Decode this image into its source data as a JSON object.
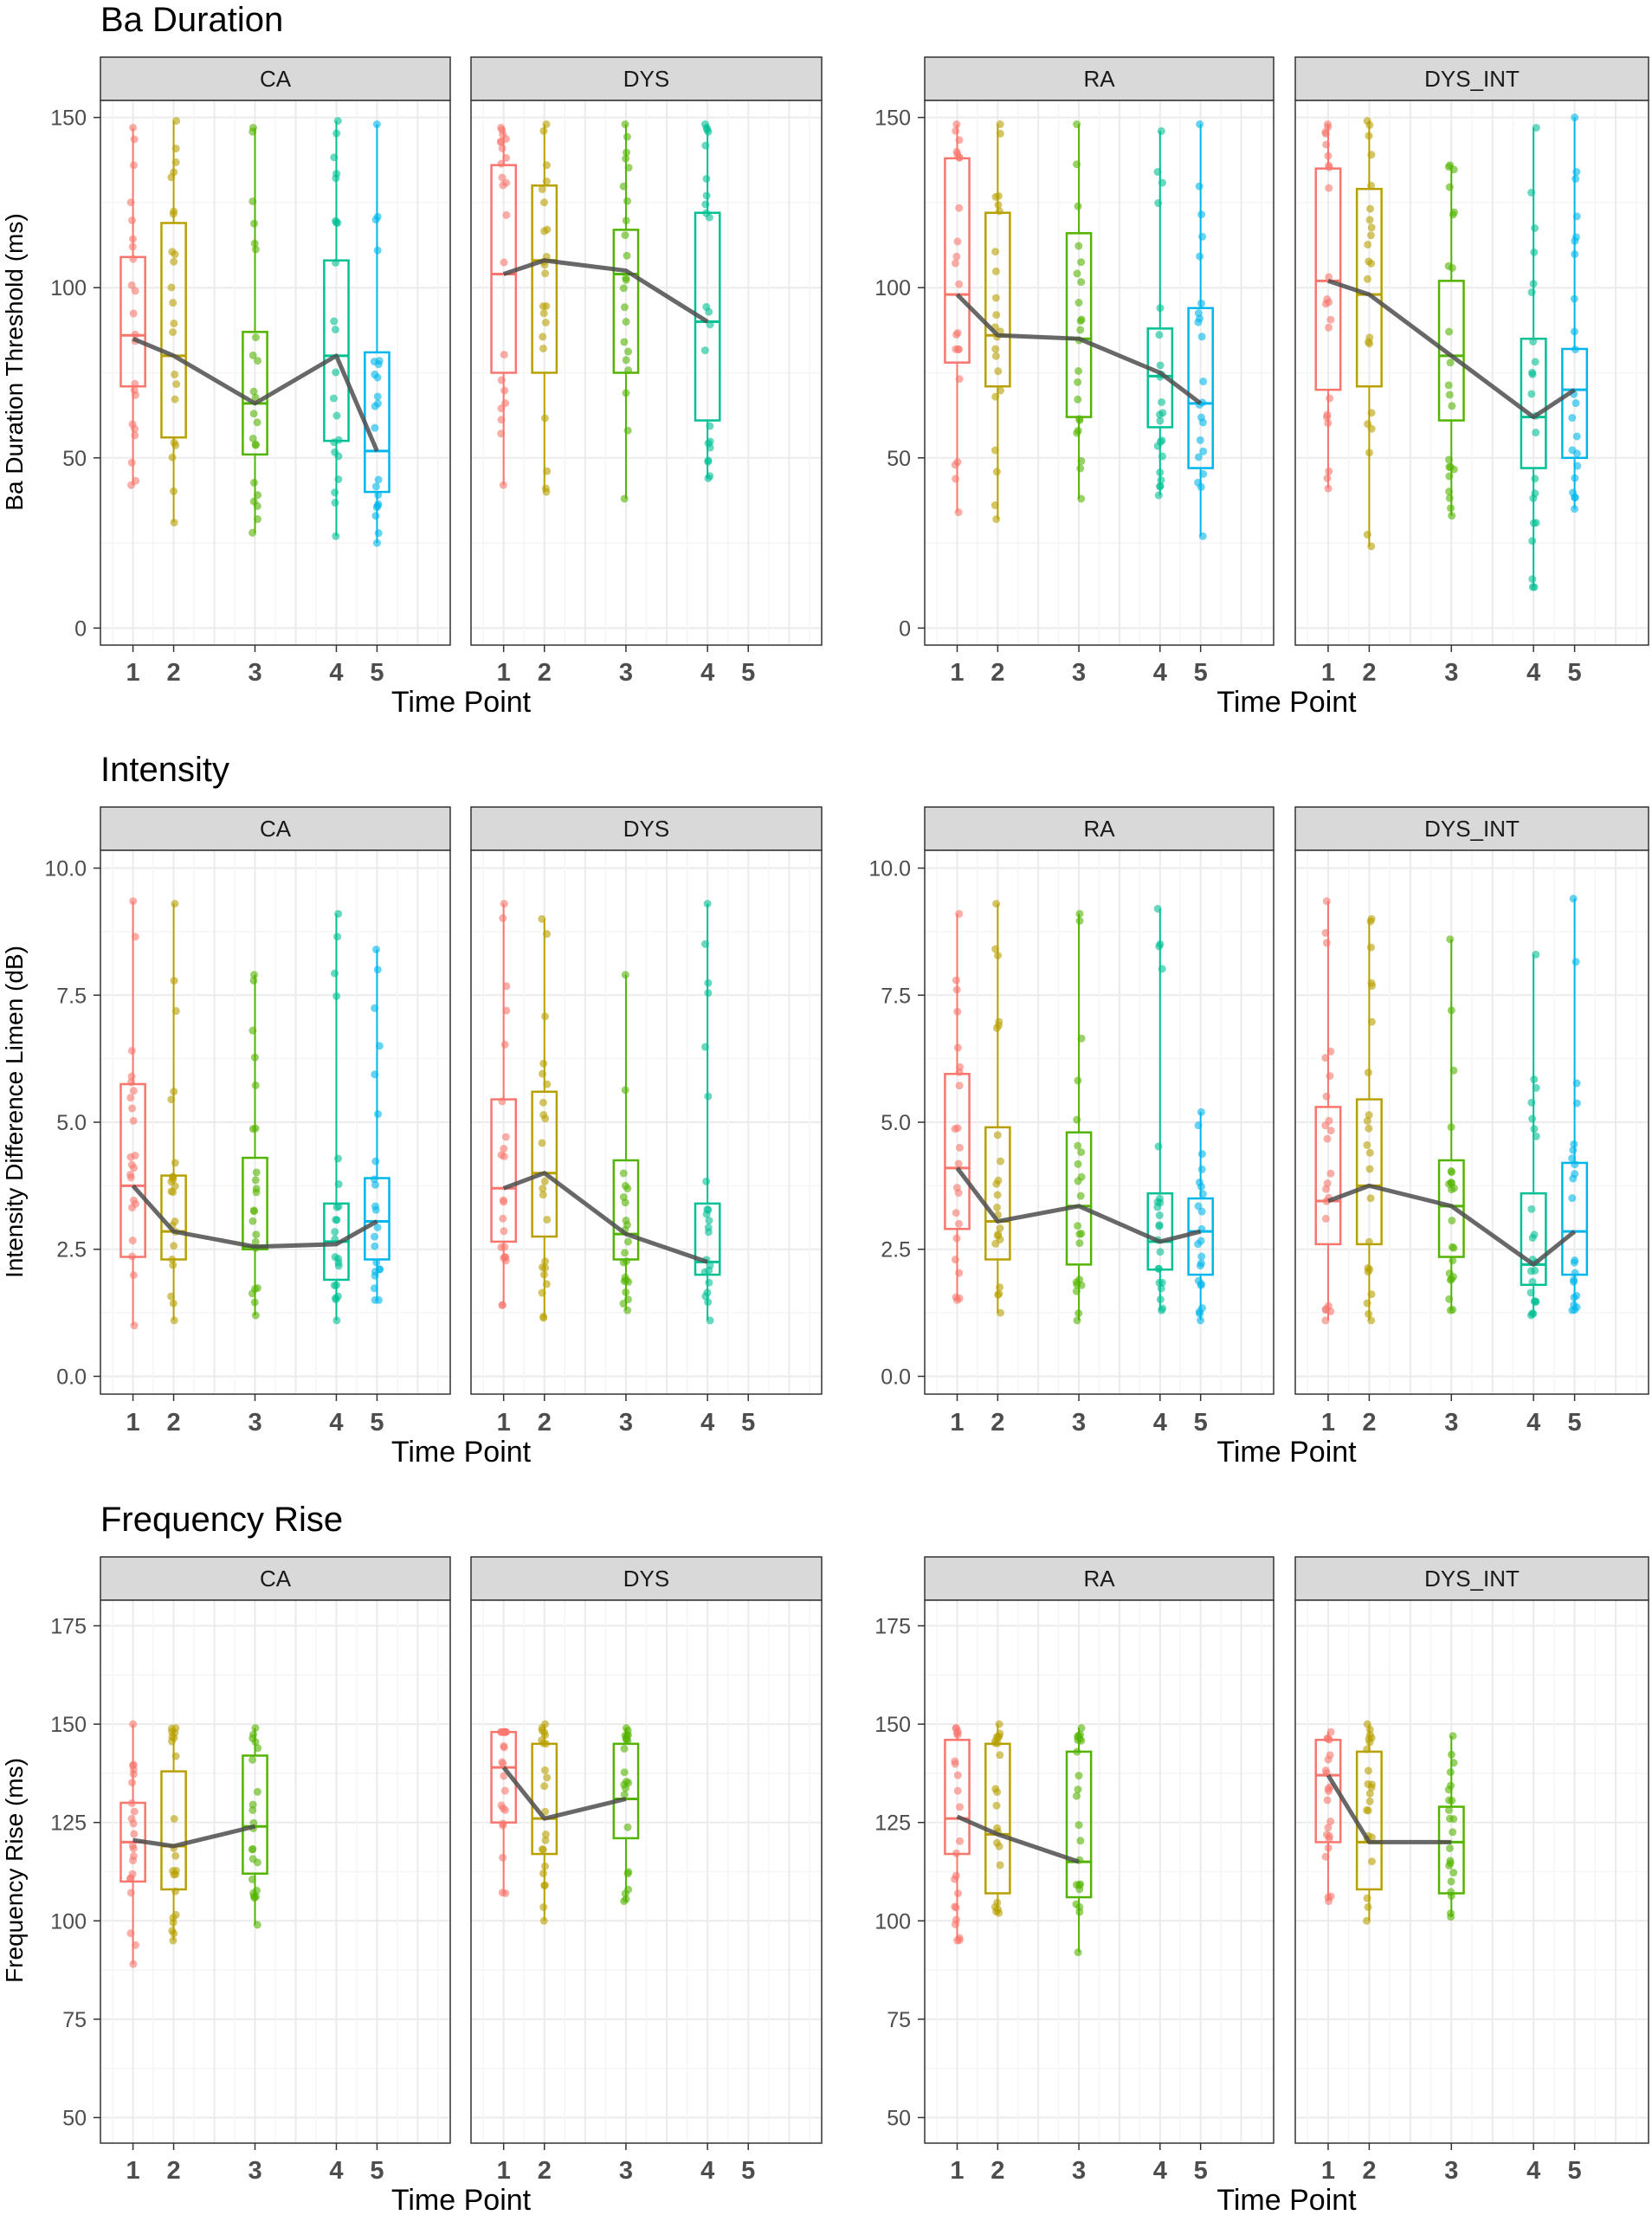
{
  "figure": {
    "x_axis_title": "Time Point",
    "colors": {
      "strip_bg": "#d9d9d9",
      "grid_major": "#ebebeb",
      "grid_minor": "#f5f5f5",
      "panel_border": "#333333",
      "mean_line": "#4d4d4d",
      "time_points": [
        "#f8766d",
        "#b8a000",
        "#53b400",
        "#00c094",
        "#00b6eb"
      ]
    }
  },
  "chart_data": [
    {
      "type": "box",
      "title": "Ba Duration",
      "ylabel": "Ba Duration Threshold (ms)",
      "xlabel": "Time Point",
      "ylim": [
        -5,
        155
      ],
      "yticks": [
        0,
        50,
        100,
        150
      ],
      "ytick_labels": [
        "0",
        "50",
        "100",
        "150"
      ],
      "x_ticks": [
        "1",
        "2",
        "3",
        "4",
        "5"
      ],
      "panels": [
        {
          "group": "CA",
          "boxes": [
            {
              "tp": 1,
              "q1": 71,
              "median": 86,
              "q3": 109,
              "min": 42,
              "max": 147
            },
            {
              "tp": 2,
              "q1": 56,
              "median": 80,
              "q3": 119,
              "min": 31,
              "max": 149
            },
            {
              "tp": 3,
              "q1": 51,
              "median": 66,
              "q3": 87,
              "min": 28,
              "max": 147
            },
            {
              "tp": 4,
              "q1": 55,
              "median": 80,
              "q3": 108,
              "min": 27,
              "max": 149
            },
            {
              "tp": 5,
              "q1": 40,
              "median": 52,
              "q3": 81,
              "min": 25,
              "max": 148
            }
          ],
          "means": [
            85,
            80,
            66,
            80,
            52
          ]
        },
        {
          "group": "DYS",
          "boxes": [
            {
              "tp": 1,
              "q1": 75,
              "median": 104,
              "q3": 136,
              "min": 42,
              "max": 147
            },
            {
              "tp": 2,
              "q1": 75,
              "median": 108,
              "q3": 130,
              "min": 40,
              "max": 148
            },
            {
              "tp": 3,
              "q1": 75,
              "median": 104,
              "q3": 117,
              "min": 38,
              "max": 148
            },
            {
              "tp": 4,
              "q1": 61,
              "median": 90,
              "q3": 122,
              "min": 44,
              "max": 148
            }
          ],
          "means": [
            104,
            108,
            105,
            90
          ]
        },
        {
          "group": "RA",
          "boxes": [
            {
              "tp": 1,
              "q1": 78,
              "median": 98,
              "q3": 138,
              "min": 34,
              "max": 148
            },
            {
              "tp": 2,
              "q1": 71,
              "median": 86,
              "q3": 122,
              "min": 32,
              "max": 148
            },
            {
              "tp": 3,
              "q1": 62,
              "median": 85,
              "q3": 116,
              "min": 38,
              "max": 148
            },
            {
              "tp": 4,
              "q1": 59,
              "median": 74,
              "q3": 88,
              "min": 39,
              "max": 146
            },
            {
              "tp": 5,
              "q1": 47,
              "median": 66,
              "q3": 94,
              "min": 27,
              "max": 148
            }
          ],
          "means": [
            98,
            86,
            85,
            75,
            66
          ]
        },
        {
          "group": "DYS_INT",
          "boxes": [
            {
              "tp": 1,
              "q1": 70,
              "median": 102,
              "q3": 135,
              "min": 41,
              "max": 148
            },
            {
              "tp": 2,
              "q1": 71,
              "median": 98,
              "q3": 129,
              "min": 24,
              "max": 149
            },
            {
              "tp": 3,
              "q1": 61,
              "median": 80,
              "q3": 102,
              "min": 33,
              "max": 136
            },
            {
              "tp": 4,
              "q1": 47,
              "median": 62,
              "q3": 85,
              "min": 12,
              "max": 147
            },
            {
              "tp": 5,
              "q1": 50,
              "median": 70,
              "q3": 82,
              "min": 35,
              "max": 150
            }
          ],
          "means": [
            102,
            98,
            80,
            62,
            70
          ]
        }
      ]
    },
    {
      "type": "box",
      "title": "Intensity",
      "ylabel": "Intensity Difference Limen (dB)",
      "xlabel": "Time Point",
      "ylim": [
        -0.35,
        10.35
      ],
      "yticks": [
        0,
        2.5,
        5,
        7.5,
        10
      ],
      "ytick_labels": [
        "0.0",
        "2.5",
        "5.0",
        "7.5",
        "10.0"
      ],
      "x_ticks": [
        "1",
        "2",
        "3",
        "4",
        "5"
      ],
      "panels": [
        {
          "group": "CA",
          "boxes": [
            {
              "tp": 1,
              "q1": 2.35,
              "median": 3.75,
              "q3": 5.75,
              "min": 1.0,
              "max": 9.35
            },
            {
              "tp": 2,
              "q1": 2.3,
              "median": 2.85,
              "q3": 3.95,
              "min": 1.1,
              "max": 9.3
            },
            {
              "tp": 3,
              "q1": 2.5,
              "median": 2.55,
              "q3": 4.3,
              "min": 1.2,
              "max": 7.9
            },
            {
              "tp": 4,
              "q1": 1.9,
              "median": 2.65,
              "q3": 3.4,
              "min": 1.1,
              "max": 9.1
            },
            {
              "tp": 5,
              "q1": 2.3,
              "median": 3.05,
              "q3": 3.9,
              "min": 1.5,
              "max": 8.4
            }
          ],
          "means": [
            3.75,
            2.85,
            2.55,
            2.6,
            3.05
          ]
        },
        {
          "group": "DYS",
          "boxes": [
            {
              "tp": 1,
              "q1": 2.65,
              "median": 3.7,
              "q3": 5.45,
              "min": 1.4,
              "max": 9.3
            },
            {
              "tp": 2,
              "q1": 2.75,
              "median": 4.0,
              "q3": 5.6,
              "min": 1.15,
              "max": 9.0
            },
            {
              "tp": 3,
              "q1": 2.3,
              "median": 2.8,
              "q3": 4.25,
              "min": 1.3,
              "max": 7.9
            },
            {
              "tp": 4,
              "q1": 2.0,
              "median": 2.25,
              "q3": 3.4,
              "min": 1.1,
              "max": 9.3
            }
          ],
          "means": [
            3.7,
            4.0,
            2.8,
            2.25
          ]
        },
        {
          "group": "RA",
          "boxes": [
            {
              "tp": 1,
              "q1": 2.9,
              "median": 4.1,
              "q3": 5.95,
              "min": 1.5,
              "max": 9.1
            },
            {
              "tp": 2,
              "q1": 2.3,
              "median": 3.05,
              "q3": 4.9,
              "min": 1.25,
              "max": 9.3
            },
            {
              "tp": 3,
              "q1": 2.2,
              "median": 3.35,
              "q3": 4.8,
              "min": 1.1,
              "max": 9.1
            },
            {
              "tp": 4,
              "q1": 2.1,
              "median": 2.65,
              "q3": 3.6,
              "min": 1.3,
              "max": 9.2
            },
            {
              "tp": 5,
              "q1": 2.0,
              "median": 2.85,
              "q3": 3.5,
              "min": 1.1,
              "max": 5.2
            }
          ],
          "means": [
            4.1,
            3.05,
            3.35,
            2.65,
            2.85
          ]
        },
        {
          "group": "DYS_INT",
          "boxes": [
            {
              "tp": 1,
              "q1": 2.6,
              "median": 3.45,
              "q3": 5.3,
              "min": 1.1,
              "max": 9.35
            },
            {
              "tp": 2,
              "q1": 2.6,
              "median": 3.75,
              "q3": 5.45,
              "min": 1.1,
              "max": 9.0
            },
            {
              "tp": 3,
              "q1": 2.35,
              "median": 3.35,
              "q3": 4.25,
              "min": 1.3,
              "max": 8.6
            },
            {
              "tp": 4,
              "q1": 1.8,
              "median": 2.2,
              "q3": 3.6,
              "min": 1.2,
              "max": 8.3
            },
            {
              "tp": 5,
              "q1": 2.0,
              "median": 2.85,
              "q3": 4.2,
              "min": 1.3,
              "max": 9.4
            }
          ],
          "means": [
            3.45,
            3.75,
            3.35,
            2.2,
            2.85
          ]
        }
      ]
    },
    {
      "type": "box",
      "title": "Frequency Rise",
      "ylabel": "Frequency Rise (ms)",
      "xlabel": "Time Point",
      "ylim": [
        43.5,
        181.5
      ],
      "yticks": [
        50,
        75,
        100,
        125,
        150,
        175
      ],
      "ytick_labels": [
        "50",
        "75",
        "100",
        "125",
        "150",
        "175"
      ],
      "x_ticks": [
        "1",
        "2",
        "3",
        "4",
        "5"
      ],
      "panels": [
        {
          "group": "CA",
          "boxes": [
            {
              "tp": 1,
              "q1": 110,
              "median": 120,
              "q3": 130,
              "min": 89,
              "max": 150
            },
            {
              "tp": 2,
              "q1": 108,
              "median": 119,
              "q3": 138,
              "min": 95,
              "max": 149
            },
            {
              "tp": 3,
              "q1": 112,
              "median": 124,
              "q3": 142,
              "min": 99,
              "max": 149
            }
          ],
          "means": [
            120.5,
            119,
            124
          ]
        },
        {
          "group": "DYS",
          "boxes": [
            {
              "tp": 1,
              "q1": 125,
              "median": 139,
              "q3": 148,
              "min": 107,
              "max": 148
            },
            {
              "tp": 2,
              "q1": 117,
              "median": 126,
              "q3": 145,
              "min": 100,
              "max": 150
            },
            {
              "tp": 3,
              "q1": 121,
              "median": 131,
              "q3": 145,
              "min": 105,
              "max": 149
            }
          ],
          "means": [
            139,
            126,
            131
          ]
        },
        {
          "group": "RA",
          "boxes": [
            {
              "tp": 1,
              "q1": 117,
              "median": 126,
              "q3": 146,
              "min": 95,
              "max": 149
            },
            {
              "tp": 2,
              "q1": 107,
              "median": 122,
              "q3": 145,
              "min": 102,
              "max": 150
            },
            {
              "tp": 3,
              "q1": 106,
              "median": 115,
              "q3": 143,
              "min": 92,
              "max": 149
            }
          ],
          "means": [
            126.5,
            122,
            115
          ]
        },
        {
          "group": "DYS_INT",
          "boxes": [
            {
              "tp": 1,
              "q1": 120,
              "median": 137,
              "q3": 146,
              "min": 105,
              "max": 148
            },
            {
              "tp": 2,
              "q1": 108,
              "median": 120,
              "q3": 143,
              "min": 100,
              "max": 150
            },
            {
              "tp": 3,
              "q1": 107,
              "median": 120,
              "q3": 129,
              "min": 101,
              "max": 147
            }
          ],
          "means": [
            137,
            120,
            120
          ]
        }
      ]
    }
  ]
}
